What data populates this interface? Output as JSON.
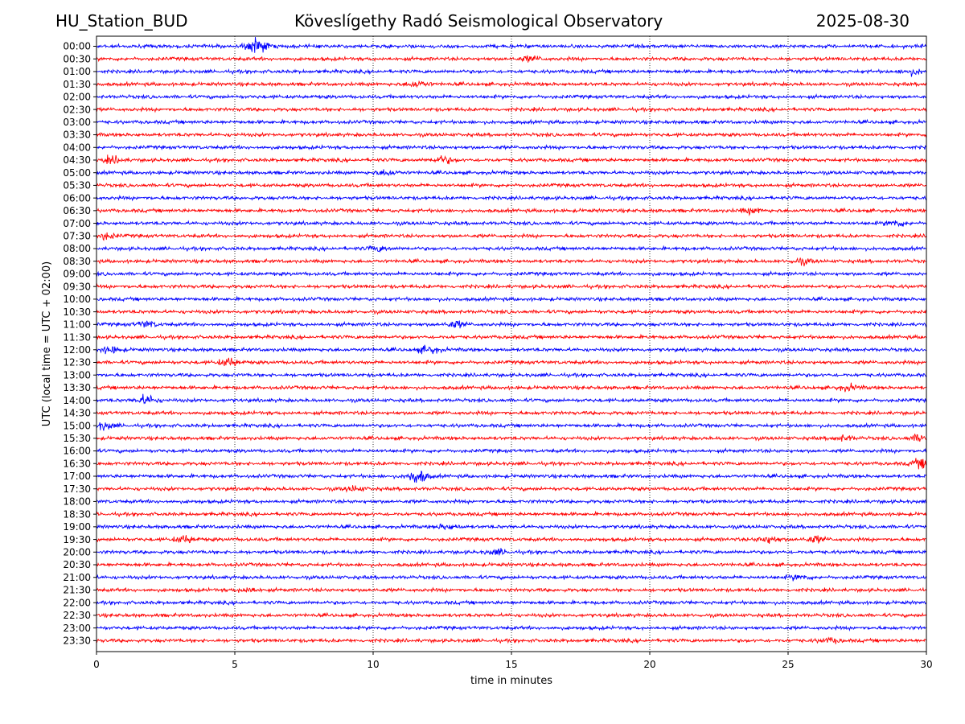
{
  "header": {
    "station": "HU_Station_BUD",
    "observatory": "Köveslígethy Radó Seismological Observatory",
    "date": "2025-08-30"
  },
  "chart_data": {
    "type": "line",
    "title": "Köveslígethy Radó Seismological Observatory",
    "xlabel": "time in minutes",
    "ylabel": "UTC (local time = UTC + 02:00)",
    "xlim": [
      0,
      30
    ],
    "x_ticks": [
      0,
      5,
      10,
      15,
      20,
      25,
      30
    ],
    "grid": "vertical dotted lines at x ticks",
    "row_labels": [
      "00:00",
      "00:30",
      "01:00",
      "01:30",
      "02:00",
      "02:30",
      "03:00",
      "03:30",
      "04:00",
      "04:30",
      "05:00",
      "05:30",
      "06:00",
      "06:30",
      "07:00",
      "07:30",
      "08:00",
      "08:30",
      "09:00",
      "09:30",
      "10:00",
      "10:30",
      "11:00",
      "11:30",
      "12:00",
      "12:30",
      "13:00",
      "13:30",
      "14:00",
      "14:30",
      "15:00",
      "15:30",
      "16:00",
      "16:30",
      "17:00",
      "17:30",
      "18:00",
      "18:30",
      "19:00",
      "19:30",
      "20:00",
      "20:30",
      "21:00",
      "21:30",
      "22:00",
      "22:30",
      "23:00",
      "23:30"
    ],
    "colors": [
      "#0000ff",
      "#ff0000"
    ],
    "bursts": [
      {
        "row": 0,
        "minute": 5.8,
        "amplitude": 1.6
      },
      {
        "row": 1,
        "minute": 15.7,
        "amplitude": 0.5
      },
      {
        "row": 2,
        "minute": 29.5,
        "amplitude": 0.5
      },
      {
        "row": 3,
        "minute": 11.6,
        "amplitude": 0.6
      },
      {
        "row": 9,
        "minute": 0.6,
        "amplitude": 0.6
      },
      {
        "row": 9,
        "minute": 12.5,
        "amplitude": 0.7
      },
      {
        "row": 10,
        "minute": 10.5,
        "amplitude": 0.5
      },
      {
        "row": 13,
        "minute": 23.7,
        "amplitude": 0.5
      },
      {
        "row": 14,
        "minute": 28.9,
        "amplitude": 0.6
      },
      {
        "row": 15,
        "minute": 0.3,
        "amplitude": 0.6
      },
      {
        "row": 16,
        "minute": 10.2,
        "amplitude": 0.5
      },
      {
        "row": 17,
        "minute": 25.5,
        "amplitude": 0.5
      },
      {
        "row": 22,
        "minute": 1.8,
        "amplitude": 0.6
      },
      {
        "row": 22,
        "minute": 13.0,
        "amplitude": 0.6
      },
      {
        "row": 24,
        "minute": 0.5,
        "amplitude": 0.6
      },
      {
        "row": 24,
        "minute": 12.0,
        "amplitude": 0.7
      },
      {
        "row": 25,
        "minute": 4.8,
        "amplitude": 0.8
      },
      {
        "row": 27,
        "minute": 27.2,
        "amplitude": 0.5
      },
      {
        "row": 28,
        "minute": 1.8,
        "amplitude": 0.9
      },
      {
        "row": 30,
        "minute": 0.3,
        "amplitude": 0.7
      },
      {
        "row": 31,
        "minute": 29.8,
        "amplitude": 0.8
      },
      {
        "row": 31,
        "minute": 27.0,
        "amplitude": 0.5
      },
      {
        "row": 33,
        "minute": 29.8,
        "amplitude": 0.8
      },
      {
        "row": 34,
        "minute": 11.6,
        "amplitude": 1.4
      },
      {
        "row": 35,
        "minute": 9.3,
        "amplitude": 0.5
      },
      {
        "row": 38,
        "minute": 12.7,
        "amplitude": 0.5
      },
      {
        "row": 39,
        "minute": 3.2,
        "amplitude": 0.7
      },
      {
        "row": 39,
        "minute": 24.3,
        "amplitude": 0.7
      },
      {
        "row": 39,
        "minute": 26.0,
        "amplitude": 0.6
      },
      {
        "row": 40,
        "minute": 14.5,
        "amplitude": 0.5
      },
      {
        "row": 42,
        "minute": 25.4,
        "amplitude": 0.5
      },
      {
        "row": 43,
        "minute": 5.5,
        "amplitude": 0.5
      },
      {
        "row": 47,
        "minute": 26.5,
        "amplitude": 0.4
      }
    ]
  }
}
